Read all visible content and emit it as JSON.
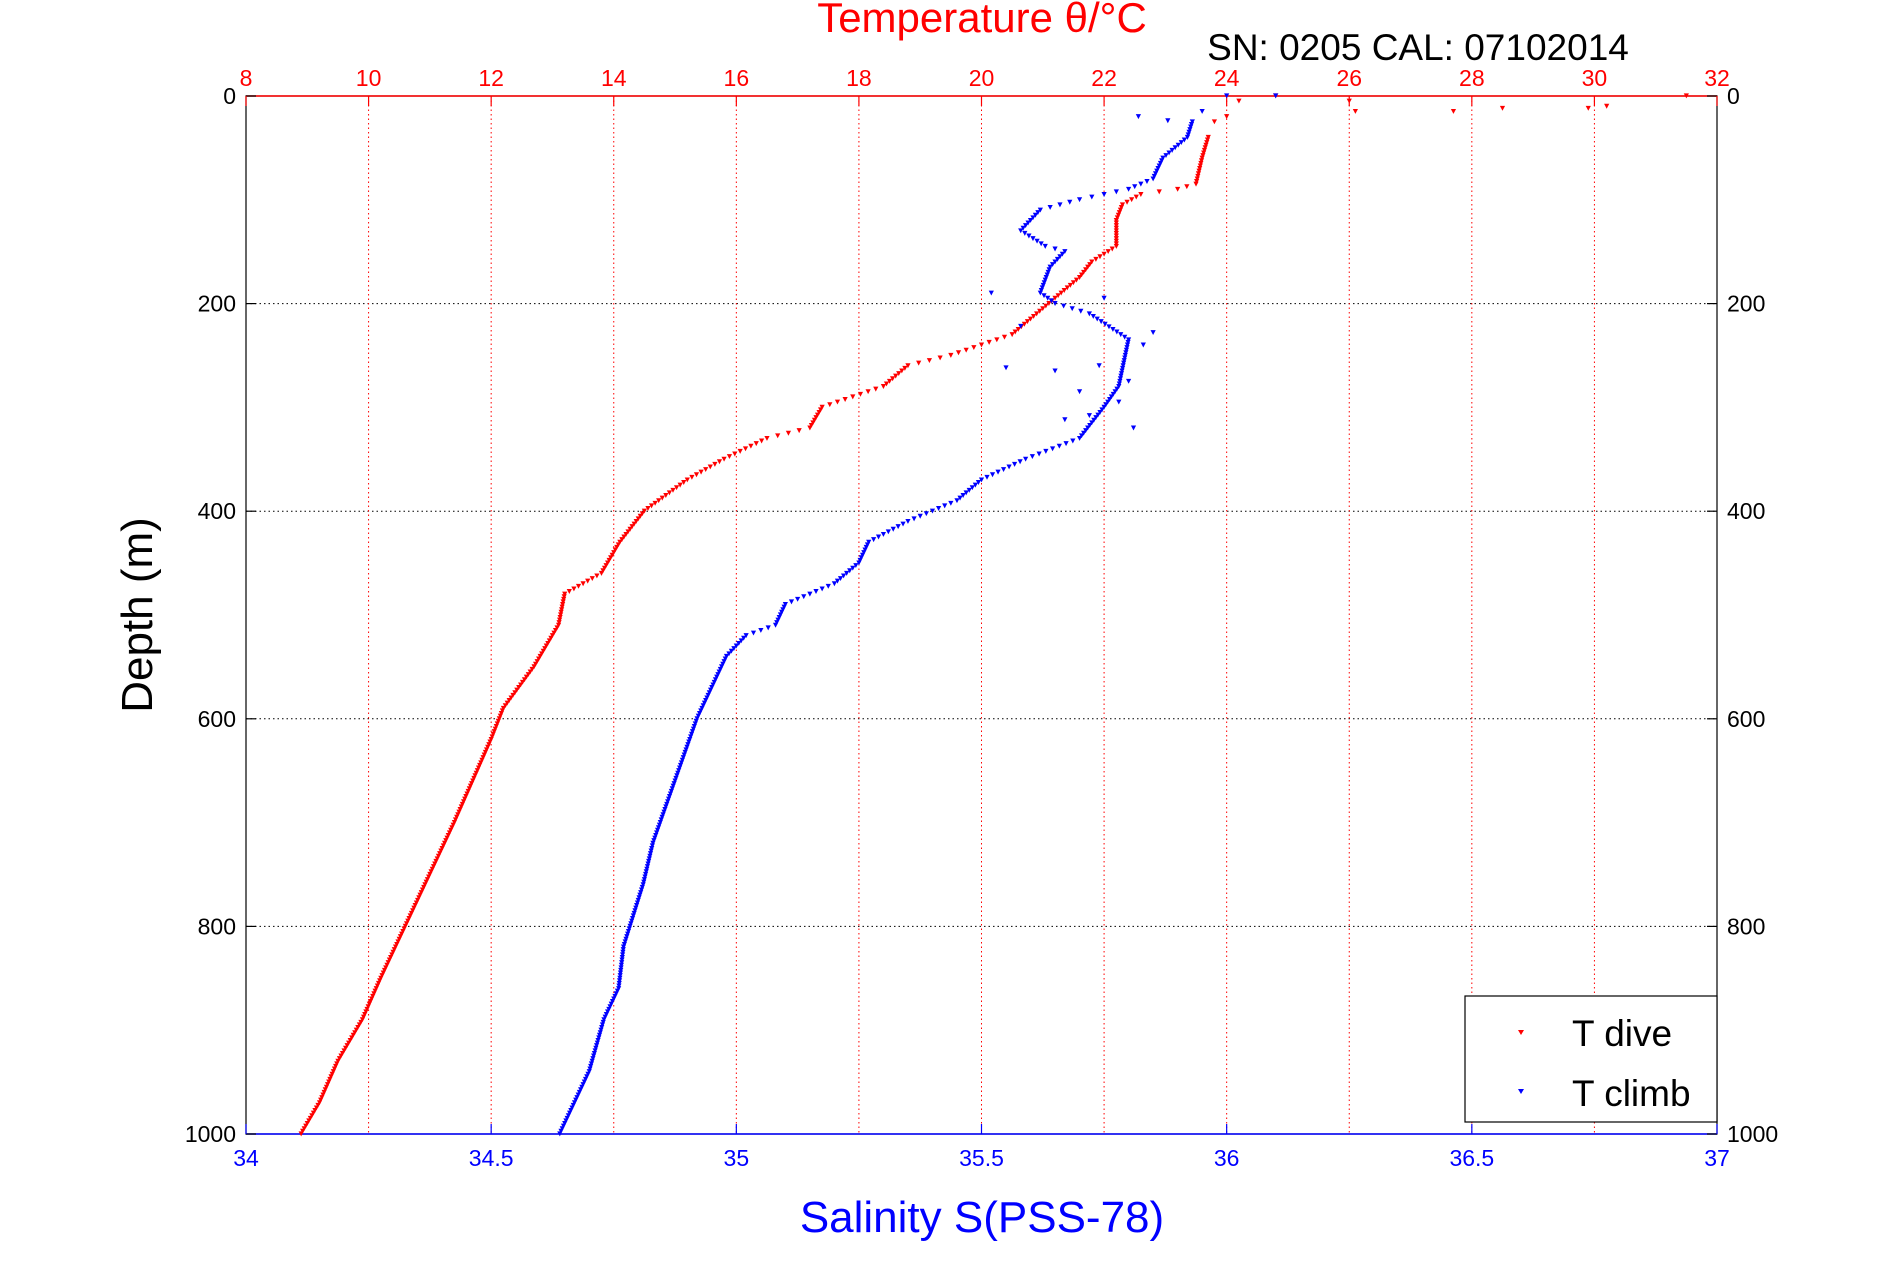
{
  "chart_data": {
    "type": "scatter",
    "title": "Temperature θ/°C",
    "subtitle": "SN: 0205  CAL: 07102014",
    "ylabel": "Depth (m)",
    "xlabel_bottom": "Salinity S(PSS-78)",
    "xlabel_top": "Temperature θ/°C",
    "ylim": [
      0,
      1000
    ],
    "y_reversed": true,
    "xlim_bottom": [
      34,
      37
    ],
    "xlim_top": [
      8,
      32
    ],
    "y_ticks": [
      "0",
      "200",
      "400",
      "600",
      "800",
      "1000"
    ],
    "x_ticks_bottom": [
      "34",
      "34.5",
      "35",
      "35.5",
      "36",
      "36.5",
      "37"
    ],
    "x_ticks_top": [
      "8",
      "10",
      "12",
      "14",
      "16",
      "18",
      "20",
      "22",
      "24",
      "26",
      "28",
      "30",
      "32"
    ],
    "grid": true,
    "legend_position": "bottom-right",
    "colors": {
      "temperature": "#ff0000",
      "salinity": "#0000ff",
      "axis": "#000000",
      "grid": "#000000"
    },
    "series": [
      {
        "name": "T dive",
        "axis": "temperature",
        "color": "#ff0000",
        "points": [
          [
            23.7,
            40
          ],
          [
            23.6,
            60
          ],
          [
            23.5,
            85
          ],
          [
            23.2,
            90
          ],
          [
            22.6,
            95
          ],
          [
            22.3,
            105
          ],
          [
            22.2,
            120
          ],
          [
            22.2,
            145
          ],
          [
            21.8,
            160
          ],
          [
            21.6,
            175
          ],
          [
            21.1,
            200
          ],
          [
            20.5,
            230
          ],
          [
            19.5,
            250
          ],
          [
            18.8,
            260
          ],
          [
            18.4,
            280
          ],
          [
            17.4,
            300
          ],
          [
            17.2,
            320
          ],
          [
            16.5,
            330
          ],
          [
            15.8,
            350
          ],
          [
            15.2,
            370
          ],
          [
            14.5,
            400
          ],
          [
            14.1,
            430
          ],
          [
            13.8,
            460
          ],
          [
            13.2,
            480
          ],
          [
            13.1,
            510
          ],
          [
            12.7,
            550
          ],
          [
            12.2,
            590
          ],
          [
            12.0,
            620
          ],
          [
            11.7,
            660
          ],
          [
            11.4,
            700
          ],
          [
            11.0,
            750
          ],
          [
            10.6,
            800
          ],
          [
            10.2,
            850
          ],
          [
            9.9,
            890
          ],
          [
            9.5,
            930
          ],
          [
            9.2,
            970
          ],
          [
            8.9,
            1000
          ],
          [
            31.5,
            0
          ],
          [
            30.2,
            10
          ],
          [
            29.9,
            12
          ],
          [
            28.5,
            12
          ],
          [
            27.7,
            15
          ],
          [
            26.1,
            15
          ],
          [
            26.0,
            5
          ],
          [
            24.8,
            0
          ],
          [
            24.2,
            5
          ],
          [
            24.0,
            20
          ],
          [
            23.8,
            25
          ]
        ]
      },
      {
        "name": "T climb",
        "axis": "salinity",
        "color": "#0000ff",
        "points": [
          [
            35.93,
            25
          ],
          [
            35.92,
            40
          ],
          [
            35.87,
            60
          ],
          [
            35.85,
            80
          ],
          [
            35.8,
            90
          ],
          [
            35.7,
            100
          ],
          [
            35.62,
            110
          ],
          [
            35.58,
            130
          ],
          [
            35.63,
            145
          ],
          [
            35.67,
            150
          ],
          [
            35.64,
            165
          ],
          [
            35.62,
            190
          ],
          [
            35.65,
            200
          ],
          [
            35.72,
            210
          ],
          [
            35.8,
            235
          ],
          [
            35.78,
            280
          ],
          [
            35.75,
            300
          ],
          [
            35.7,
            330
          ],
          [
            35.59,
            350
          ],
          [
            35.5,
            370
          ],
          [
            35.45,
            390
          ],
          [
            35.35,
            410
          ],
          [
            35.27,
            430
          ],
          [
            35.25,
            450
          ],
          [
            35.2,
            470
          ],
          [
            35.1,
            490
          ],
          [
            35.08,
            510
          ],
          [
            35.02,
            520
          ],
          [
            34.98,
            540
          ],
          [
            34.95,
            570
          ],
          [
            34.92,
            600
          ],
          [
            34.89,
            640
          ],
          [
            34.86,
            680
          ],
          [
            34.83,
            720
          ],
          [
            34.81,
            760
          ],
          [
            34.77,
            820
          ],
          [
            34.76,
            860
          ],
          [
            34.73,
            890
          ],
          [
            34.7,
            940
          ],
          [
            34.66,
            980
          ],
          [
            34.64,
            1000
          ],
          [
            35.52,
            190
          ],
          [
            35.75,
            195
          ],
          [
            35.58,
            222
          ],
          [
            35.85,
            228
          ],
          [
            35.83,
            240
          ],
          [
            35.55,
            262
          ],
          [
            35.65,
            265
          ],
          [
            35.74,
            260
          ],
          [
            35.8,
            275
          ],
          [
            35.7,
            285
          ],
          [
            35.78,
            295
          ],
          [
            35.72,
            308
          ],
          [
            35.67,
            312
          ],
          [
            35.81,
            320
          ],
          [
            35.82,
            20
          ],
          [
            35.88,
            24
          ],
          [
            35.95,
            15
          ],
          [
            36.1,
            0
          ],
          [
            36.0,
            0
          ]
        ]
      }
    ]
  },
  "legend": {
    "items": [
      "T dive",
      "T climb"
    ]
  }
}
